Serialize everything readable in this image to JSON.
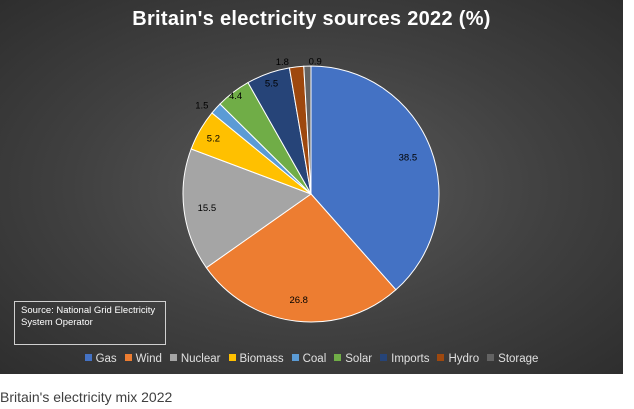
{
  "chart_data": {
    "type": "pie",
    "title": "Britain's electricity sources 2022 (%)",
    "unit": "%",
    "start_angle": "12 o'clock",
    "direction": "clockwise",
    "slices": [
      {
        "label": "Gas",
        "value": 38.5,
        "display": "38.5",
        "color": "#4472C4"
      },
      {
        "label": "Wind",
        "value": 26.8,
        "display": "26.8",
        "color": "#ED7D31"
      },
      {
        "label": "Nuclear",
        "value": 15.5,
        "display": "15.5",
        "color": "#A5A5A5"
      },
      {
        "label": "Biomass",
        "value": 5.2,
        "display": "5.2",
        "color": "#FFC000"
      },
      {
        "label": "Coal",
        "value": 1.5,
        "display": "1.5",
        "color": "#5B9BD5"
      },
      {
        "label": "Solar",
        "value": 4.4,
        "display": "4.4",
        "color": "#70AD47"
      },
      {
        "label": "Imports",
        "value": 5.5,
        "display": "5.5",
        "color": "#264478"
      },
      {
        "label": "Hydro",
        "value": 1.8,
        "display": "1.8",
        "color": "#9E480E"
      },
      {
        "label": "Storage",
        "value": 0.9,
        "display": "0.9",
        "color": "#636363"
      }
    ],
    "legend_position": "bottom"
  },
  "source_note": "Source: National Grid Electricity System Operator",
  "caption": "Britain's electricity mix 2022"
}
